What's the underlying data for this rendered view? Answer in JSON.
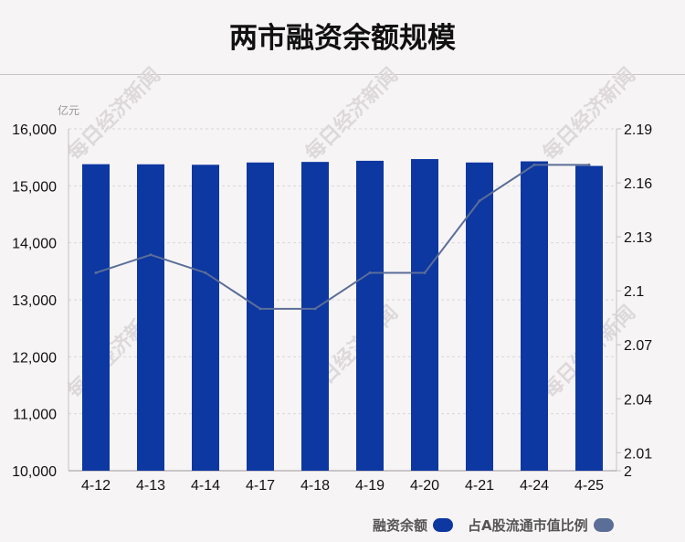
{
  "title": "两市融资余额规模",
  "chart_data": {
    "type": "bar",
    "title": "两市融资余额规模",
    "unit_label": "亿元",
    "categories": [
      "4-12",
      "4-13",
      "4-14",
      "4-17",
      "4-18",
      "4-19",
      "4-20",
      "4-21",
      "4-24",
      "4-25"
    ],
    "series": [
      {
        "name": "融资余额",
        "type": "bar",
        "axis": "left",
        "color": "#0d37a1",
        "values": [
          15380,
          15378,
          15370,
          15410,
          15420,
          15440,
          15470,
          15410,
          15430,
          15350
        ]
      },
      {
        "name": "占A股流通市值比例",
        "type": "line",
        "axis": "right",
        "color": "#5b6e98",
        "values": [
          2.11,
          2.12,
          2.11,
          2.09,
          2.09,
          2.11,
          2.11,
          2.15,
          2.17,
          2.17
        ]
      }
    ],
    "y_left": {
      "min": 10000,
      "max": 16000,
      "ticks": [
        10000,
        11000,
        12000,
        13000,
        14000,
        15000,
        16000
      ],
      "tick_labels": [
        "10,000",
        "11,000",
        "12,000",
        "13,000",
        "14,000",
        "15,000",
        "16,000"
      ]
    },
    "y_right": {
      "min": 2.0,
      "max": 2.19,
      "ticks": [
        2.0,
        2.01,
        2.04,
        2.07,
        2.1,
        2.13,
        2.16,
        2.19
      ],
      "tick_labels": [
        "2",
        "2.01",
        "2.04",
        "2.07",
        "2.1",
        "2.13",
        "2.16",
        "2.19"
      ]
    },
    "grid": "horizontal dashed",
    "legend_position": "bottom-right"
  },
  "watermark": "每日经济新闻",
  "legend": [
    {
      "label": "融资余额",
      "color": "#0d37a1"
    },
    {
      "label": "占A股流通市值比例",
      "color": "#5b6e98"
    }
  ]
}
